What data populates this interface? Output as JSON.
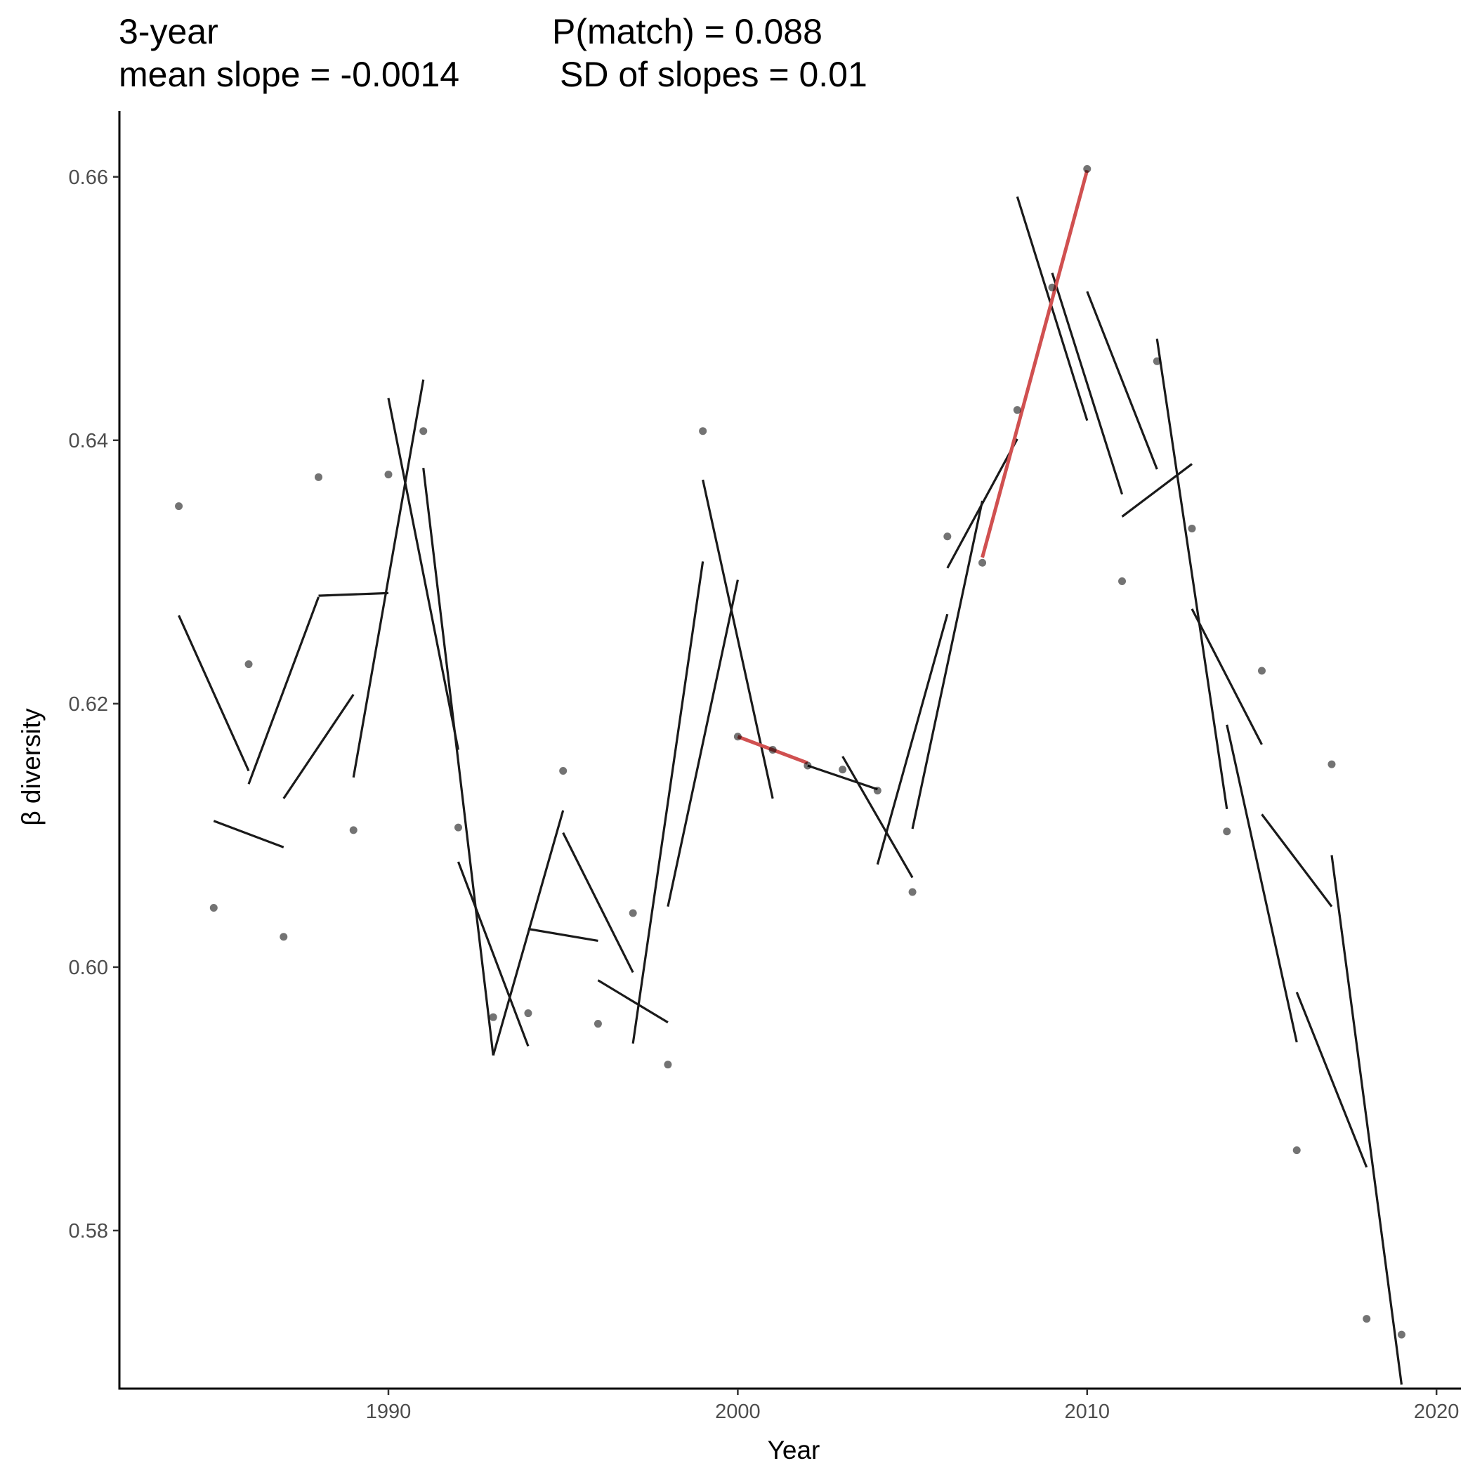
{
  "chart_data": {
    "type": "scatter",
    "title_lines": [
      [
        "3-year",
        "P(match) = 0.088"
      ],
      [
        "mean slope = -0.0014",
        "SD of slopes = 0.01"
      ]
    ],
    "xlabel": "Year",
    "ylabel": "β diversity",
    "xlim": [
      1982.3,
      2020.7
    ],
    "ylim": [
      0.568,
      0.665
    ],
    "xticks": [
      1990,
      2000,
      2010,
      2020
    ],
    "xtick_labels": [
      "1990",
      "2000",
      "2010",
      "2020"
    ],
    "yticks": [
      0.58,
      0.6,
      0.62,
      0.64,
      0.66
    ],
    "ytick_labels": [
      "0.58",
      "0.60",
      "0.62",
      "0.64",
      "0.66"
    ],
    "grid": false,
    "colors": {
      "points": "#000000",
      "segments": "#1a1a1a",
      "highlight": "#d05050",
      "axis": "#000000"
    },
    "points": {
      "x": [
        1984,
        1985,
        1986,
        1987,
        1988,
        1989,
        1990,
        1991,
        1992,
        1993,
        1994,
        1995,
        1996,
        1997,
        1998,
        1999,
        2000,
        2001,
        2002,
        2003,
        2004,
        2005,
        2006,
        2007,
        2008,
        2009,
        2010,
        2011,
        2012,
        2013,
        2014,
        2015,
        2016,
        2017,
        2018,
        2019
      ],
      "y": [
        0.635,
        0.6045,
        0.623,
        0.6023,
        0.6372,
        0.6104,
        0.6374,
        0.6407,
        0.6106,
        0.5962,
        0.5965,
        0.6149,
        0.5957,
        0.6041,
        0.5926,
        0.6407,
        0.6175,
        0.6165,
        0.6153,
        0.615,
        0.6134,
        0.6057,
        0.6327,
        0.6307,
        0.6423,
        0.6516,
        0.6606,
        0.6293,
        0.646,
        0.6333,
        0.6103,
        0.6225,
        0.5861,
        0.6154,
        0.5733,
        0.5721
      ]
    },
    "segments": [
      {
        "x": [
          1984,
          1986
        ],
        "y": [
          0.6267,
          0.6149
        ]
      },
      {
        "x": [
          1985,
          1987
        ],
        "y": [
          0.6111,
          0.6091
        ]
      },
      {
        "x": [
          1986,
          1988
        ],
        "y": [
          0.6139,
          0.6281
        ]
      },
      {
        "x": [
          1987,
          1989
        ],
        "y": [
          0.6128,
          0.6207
        ]
      },
      {
        "x": [
          1988,
          1990
        ],
        "y": [
          0.6282,
          0.6284
        ]
      },
      {
        "x": [
          1989,
          1991
        ],
        "y": [
          0.6144,
          0.6446
        ]
      },
      {
        "x": [
          1990,
          1992
        ],
        "y": [
          0.6432,
          0.6165
        ]
      },
      {
        "x": [
          1991,
          1993
        ],
        "y": [
          0.6379,
          0.5933
        ]
      },
      {
        "x": [
          1992,
          1994
        ],
        "y": [
          0.608,
          0.594
        ]
      },
      {
        "x": [
          1993,
          1995
        ],
        "y": [
          0.5933,
          0.6119
        ]
      },
      {
        "x": [
          1994,
          1996
        ],
        "y": [
          0.6029,
          0.602
        ]
      },
      {
        "x": [
          1995,
          1997
        ],
        "y": [
          0.6102,
          0.5996
        ]
      },
      {
        "x": [
          1996,
          1998
        ],
        "y": [
          0.599,
          0.5958
        ]
      },
      {
        "x": [
          1997,
          1999
        ],
        "y": [
          0.5942,
          0.6308
        ]
      },
      {
        "x": [
          1998,
          2000
        ],
        "y": [
          0.6046,
          0.6294
        ]
      },
      {
        "x": [
          1999,
          2001
        ],
        "y": [
          0.637,
          0.6128
        ]
      },
      {
        "x": [
          2002,
          2004
        ],
        "y": [
          0.6153,
          0.6135
        ]
      },
      {
        "x": [
          2003,
          2005
        ],
        "y": [
          0.616,
          0.6068
        ]
      },
      {
        "x": [
          2004,
          2006
        ],
        "y": [
          0.6078,
          0.6268
        ]
      },
      {
        "x": [
          2005,
          2007
        ],
        "y": [
          0.6105,
          0.6354
        ]
      },
      {
        "x": [
          2006,
          2008
        ],
        "y": [
          0.6303,
          0.6401
        ]
      },
      {
        "x": [
          2008,
          2010
        ],
        "y": [
          0.6585,
          0.6415
        ]
      },
      {
        "x": [
          2009,
          2011
        ],
        "y": [
          0.6527,
          0.6359
        ]
      },
      {
        "x": [
          2010,
          2012
        ],
        "y": [
          0.6513,
          0.6378
        ]
      },
      {
        "x": [
          2011,
          2013
        ],
        "y": [
          0.6342,
          0.6382
        ]
      },
      {
        "x": [
          2012,
          2014
        ],
        "y": [
          0.6477,
          0.612
        ]
      },
      {
        "x": [
          2013,
          2015
        ],
        "y": [
          0.6272,
          0.6169
        ]
      },
      {
        "x": [
          2014,
          2016
        ],
        "y": [
          0.6184,
          0.5943
        ]
      },
      {
        "x": [
          2015,
          2017
        ],
        "y": [
          0.6116,
          0.6046
        ]
      },
      {
        "x": [
          2016,
          2018
        ],
        "y": [
          0.5981,
          0.5848
        ]
      },
      {
        "x": [
          2017,
          2019
        ],
        "y": [
          0.6085,
          0.5683
        ]
      }
    ],
    "highlight_segments": [
      {
        "x": [
          2000,
          2002
        ],
        "y": [
          0.6175,
          0.6155
        ]
      },
      {
        "x": [
          2007,
          2010
        ],
        "y": [
          0.6311,
          0.6605
        ]
      }
    ]
  }
}
